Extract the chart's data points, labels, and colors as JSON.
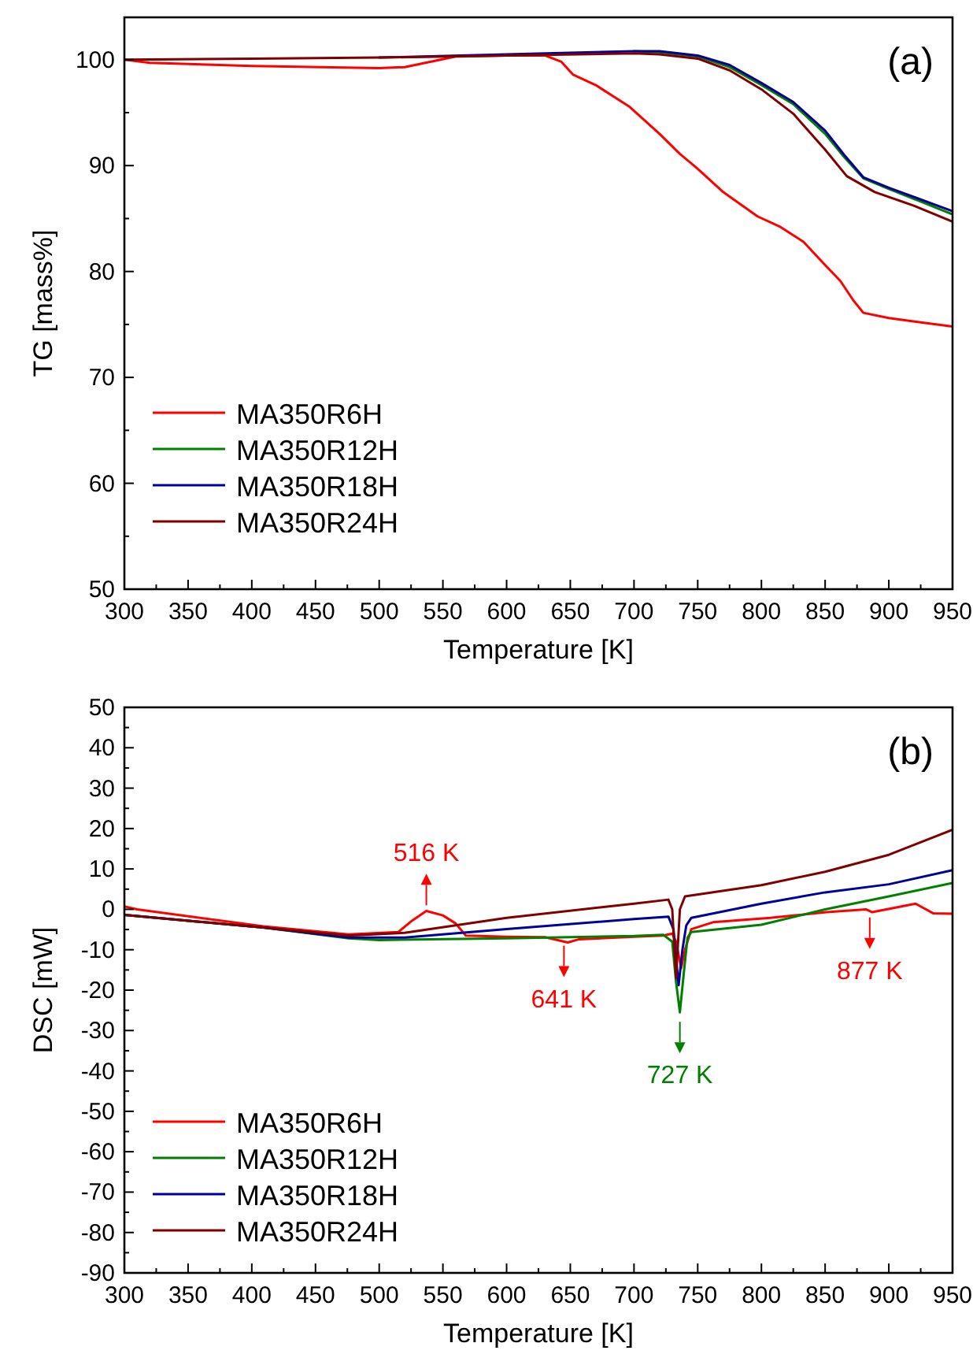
{
  "chart_data": [
    {
      "type": "line",
      "title": "(a)",
      "xlabel": "Temperature [K]",
      "ylabel": "TG [mass%]",
      "xlim": [
        300,
        950
      ],
      "xticks": [
        300,
        350,
        400,
        450,
        500,
        550,
        600,
        650,
        700,
        750,
        800,
        850,
        900,
        950
      ],
      "ylim": [
        50,
        104
      ],
      "yticks": [
        50,
        60,
        70,
        80,
        90,
        100
      ],
      "legend": "bottom left",
      "grid": false,
      "line_style": "solid",
      "series": [
        {
          "name": "MA350R6H",
          "color": "#ff0000",
          "x": [
            300,
            320,
            400,
            500,
            520,
            540,
            560,
            600,
            630,
            643,
            652,
            670,
            696,
            720,
            736,
            749,
            770,
            797,
            815,
            833,
            850,
            862,
            872,
            880,
            900,
            925,
            950
          ],
          "values": [
            100,
            99.7,
            99.4,
            99.2,
            99.3,
            99.8,
            100.3,
            100.4,
            100.4,
            99.8,
            98.6,
            97.6,
            95.6,
            93,
            91.1,
            89.8,
            87.5,
            85.2,
            84.2,
            82.8,
            80.6,
            79.1,
            77.3,
            76.1,
            75.6,
            75.2,
            74.8
          ]
        },
        {
          "name": "MA350R12H",
          "color": "#008000",
          "x": [
            700,
            720,
            750,
            775,
            800,
            825,
            850,
            865,
            880,
            900,
            925,
            950
          ],
          "values": [
            100.8,
            100.7,
            100.3,
            99.3,
            97.6,
            95.8,
            93,
            90.8,
            88.8,
            87.8,
            86.6,
            85.4
          ]
        },
        {
          "name": "MA350R18H",
          "color": "#000099",
          "x": [
            500,
            600,
            700,
            720,
            750,
            775,
            800,
            825,
            850,
            865,
            880,
            900,
            925,
            950
          ],
          "values": [
            100.2,
            100.5,
            100.8,
            100.8,
            100.4,
            99.5,
            97.8,
            96,
            93.3,
            91,
            88.9,
            87.9,
            86.8,
            85.7
          ]
        },
        {
          "name": "MA350R24H",
          "color": "#800000",
          "x": [
            300,
            400,
            500,
            600,
            700,
            720,
            750,
            775,
            800,
            825,
            850,
            867,
            889,
            920,
            950
          ],
          "values": [
            100,
            100.1,
            100.2,
            100.4,
            100.6,
            100.5,
            100.1,
            99,
            97.2,
            94.9,
            91.5,
            89,
            87.5,
            86.2,
            84.7
          ]
        }
      ]
    },
    {
      "type": "line",
      "title": "(b)",
      "xlabel": "Temperature [K]",
      "ylabel": "DSC [mW]",
      "xlim": [
        300,
        950
      ],
      "xticks": [
        300,
        350,
        400,
        450,
        500,
        550,
        600,
        650,
        700,
        750,
        800,
        850,
        900,
        950
      ],
      "ylim": [
        -90,
        50
      ],
      "yticks": [
        -90,
        -80,
        -70,
        -60,
        -50,
        -40,
        -30,
        -20,
        -10,
        0,
        10,
        20,
        30,
        40,
        50
      ],
      "legend": "bottom left",
      "grid": false,
      "line_style": "solid",
      "annotations": [
        {
          "text": "516 K",
          "x": 537,
          "y": 1
        },
        {
          "text": "641 K",
          "x": 645,
          "y": -9
        },
        {
          "text": "727 K",
          "x": 736,
          "y": -25.5
        },
        {
          "text": "877 K",
          "x": 885,
          "y": -2
        }
      ],
      "series": [
        {
          "name": "MA350R6H",
          "color": "#ff0000",
          "x": [
            300,
            310,
            409,
            476,
            515,
            525,
            537,
            550,
            560,
            568,
            600,
            630,
            648,
            657,
            700,
            723,
            730,
            733,
            737,
            740,
            745,
            762,
            807,
            851,
            882,
            887,
            921,
            935,
            950
          ],
          "values": [
            0.7,
            0,
            -4.2,
            -6.2,
            -5.6,
            -3,
            -0.4,
            -1.5,
            -3.5,
            -6.5,
            -6.8,
            -6.9,
            -8.2,
            -7.4,
            -6.8,
            -6.5,
            -6,
            -8,
            -14.6,
            -10,
            -4.9,
            -3.2,
            -2.1,
            -0.7,
            0,
            -0.7,
            1.4,
            -1,
            -1.1
          ]
        },
        {
          "name": "MA350R12H",
          "color": "#008000",
          "x": [
            300,
            409,
            476,
            500,
            600,
            700,
            723,
            730,
            733,
            736,
            739,
            742,
            745,
            800,
            850,
            900,
            950
          ],
          "values": [
            -1.4,
            -4.5,
            -7.2,
            -7.6,
            -7.2,
            -6.6,
            -6.3,
            -8,
            -18,
            -25.5,
            -16,
            -7,
            -5.6,
            -3.8,
            0,
            3.2,
            6.5
          ]
        },
        {
          "name": "MA350R18H",
          "color": "#000099",
          "x": [
            300,
            409,
            476,
            520,
            600,
            700,
            727,
            731,
            735,
            738,
            741,
            745,
            800,
            850,
            900,
            950
          ],
          "values": [
            -1.4,
            -4.5,
            -7,
            -7,
            -4.9,
            -2.4,
            -1.8,
            -5,
            -18.8,
            -10,
            -4,
            -2.1,
            1.4,
            4.2,
            6.2,
            9.7
          ]
        },
        {
          "name": "MA350R24H",
          "color": "#800000",
          "x": [
            300,
            409,
            476,
            520,
            600,
            700,
            727,
            730,
            733,
            736,
            740,
            800,
            850,
            900,
            950
          ],
          "values": [
            -1.4,
            -4.5,
            -6.5,
            -5.8,
            -2.1,
            1.4,
            2.4,
            0,
            -17,
            0,
            3.2,
            6,
            9.3,
            13.5,
            19.7
          ]
        }
      ]
    }
  ]
}
